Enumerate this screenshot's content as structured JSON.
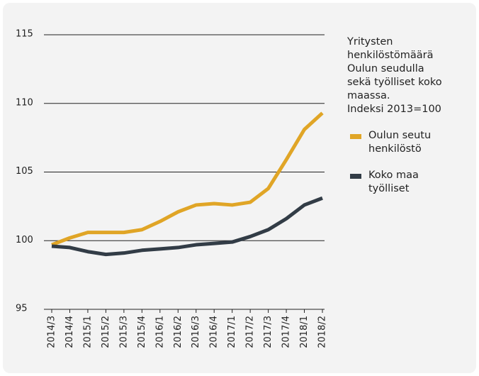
{
  "chart_data": {
    "type": "line",
    "description": [
      "Yritysten",
      "henkilöstömäärä",
      "Oulun seudulla",
      "sekä työlliset koko",
      "maassa.",
      "Indeksi 2013=100"
    ],
    "categories": [
      "2014/3",
      "2014/4",
      "2015/1",
      "2015/2",
      "2015/3",
      "2015/4",
      "2016/1",
      "2016/2",
      "2016/3",
      "2016/4",
      "2017/1",
      "2017/2",
      "2017/3",
      "2017/4",
      "2018/1",
      "2018/2"
    ],
    "series": [
      {
        "name": "Oulun seutu henkilöstö",
        "color": "#e0a526",
        "values": [
          99.7,
          100.2,
          100.6,
          100.6,
          100.6,
          100.8,
          101.4,
          102.1,
          102.6,
          102.7,
          102.6,
          102.8,
          103.8,
          105.9,
          108.1,
          109.3
        ]
      },
      {
        "name": "Koko maa työlliset",
        "color": "#323c46",
        "values": [
          99.6,
          99.5,
          99.2,
          99.0,
          99.1,
          99.3,
          99.4,
          99.5,
          99.7,
          99.8,
          99.9,
          100.3,
          100.8,
          101.6,
          102.6,
          103.1
        ]
      }
    ],
    "ylim": [
      95,
      115
    ],
    "yticks": [
      95,
      100,
      105,
      110,
      115
    ],
    "grid": true
  }
}
